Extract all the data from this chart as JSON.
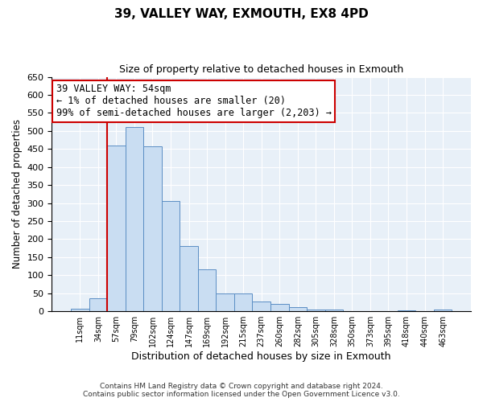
{
  "title": "39, VALLEY WAY, EXMOUTH, EX8 4PD",
  "subtitle": "Size of property relative to detached houses in Exmouth",
  "xlabel": "Distribution of detached houses by size in Exmouth",
  "ylabel": "Number of detached properties",
  "bar_labels": [
    "11sqm",
    "34sqm",
    "57sqm",
    "79sqm",
    "102sqm",
    "124sqm",
    "147sqm",
    "169sqm",
    "192sqm",
    "215sqm",
    "237sqm",
    "260sqm",
    "282sqm",
    "305sqm",
    "328sqm",
    "350sqm",
    "373sqm",
    "395sqm",
    "418sqm",
    "440sqm",
    "463sqm"
  ],
  "bar_heights": [
    7,
    36,
    460,
    510,
    457,
    305,
    180,
    116,
    50,
    50,
    28,
    20,
    12,
    4,
    4,
    1,
    1,
    1,
    2,
    1,
    5
  ],
  "bar_color": "#c9ddf2",
  "bar_edge_color": "#5b8ec4",
  "vline_x_index": 2,
  "vline_color": "#cc0000",
  "annotation_text": "39 VALLEY WAY: 54sqm\n← 1% of detached houses are smaller (20)\n99% of semi-detached houses are larger (2,203) →",
  "annotation_box_color": "#ffffff",
  "annotation_box_edge_color": "#cc0000",
  "ylim": [
    0,
    650
  ],
  "yticks": [
    0,
    50,
    100,
    150,
    200,
    250,
    300,
    350,
    400,
    450,
    500,
    550,
    600,
    650
  ],
  "footer_line1": "Contains HM Land Registry data © Crown copyright and database right 2024.",
  "footer_line2": "Contains public sector information licensed under the Open Government Licence v3.0.",
  "bg_color": "#e8f0f8"
}
